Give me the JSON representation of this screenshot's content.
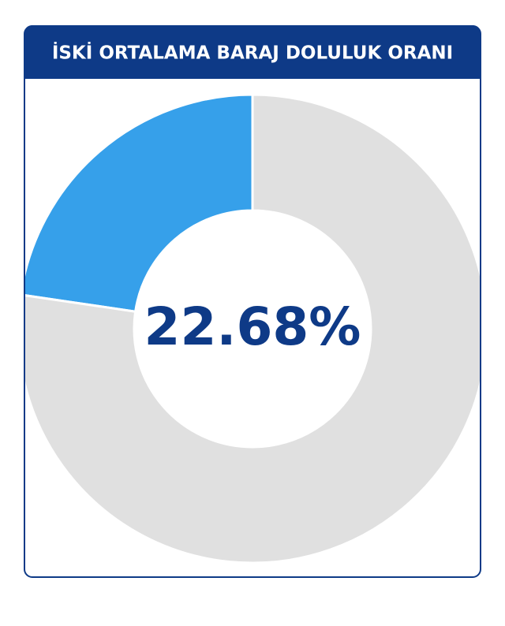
{
  "chart_data": {
    "type": "donut",
    "title": "İSKİ ORTALAMA BARAJ DOLULUK ORANI",
    "values": [
      22.68,
      77.32
    ],
    "value_labels": [
      "22.68%",
      null
    ],
    "colors": [
      "#36a0ea",
      "#e0e0e0"
    ]
  }
}
